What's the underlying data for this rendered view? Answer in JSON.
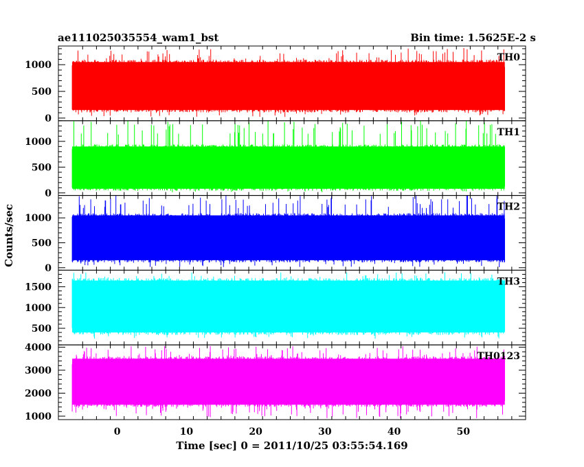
{
  "header": {
    "left_title": "ae111025035554_wam1_bst",
    "right_title": "Bin time: 1.5625E-2 s"
  },
  "chart_data": {
    "type": "line",
    "title": "ae111025035554_wam1_bst",
    "subtitle": "Bin time: 1.5625E-2 s",
    "xlabel": "Time [sec] 0 = 2011/10/25 03:55:54.169",
    "ylabel": "Counts/sec",
    "xlim": [
      -8.5,
      59
    ],
    "x_ticks": [
      0,
      10,
      20,
      30,
      40,
      50
    ],
    "x_tick_labels": [
      "0",
      "10",
      "20",
      "30",
      "40",
      "50"
    ],
    "x_data_range": [
      -6.5,
      56
    ],
    "grid": false,
    "panels": [
      {
        "name": "TH0",
        "color": "#ff0000",
        "ylim": [
          -50,
          1350
        ],
        "y_ticks": [
          0,
          500,
          1000
        ],
        "y_tick_labels": [
          "0",
          "500",
          "1000"
        ],
        "typical_range": [
          150,
          1050
        ],
        "extreme_range": [
          20,
          1320
        ]
      },
      {
        "name": "TH1",
        "color": "#00ff00",
        "ylim": [
          -50,
          1400
        ],
        "y_ticks": [
          0,
          500,
          1000
        ],
        "y_tick_labels": [
          "0",
          "500",
          "1000"
        ],
        "typical_range": [
          80,
          900
        ],
        "extreme_range": [
          10,
          1400
        ]
      },
      {
        "name": "TH2",
        "color": "#0000ff",
        "ylim": [
          -50,
          1450
        ],
        "y_ticks": [
          0,
          500,
          1000
        ],
        "y_tick_labels": [
          "0",
          "500",
          "1000"
        ],
        "typical_range": [
          150,
          1050
        ],
        "extreme_range": [
          10,
          1450
        ]
      },
      {
        "name": "TH3",
        "color": "#00ffff",
        "ylim": [
          100,
          1900
        ],
        "y_ticks": [
          500,
          1000,
          1500
        ],
        "y_tick_labels": [
          "500",
          "1000",
          "1500"
        ],
        "typical_range": [
          400,
          1650
        ],
        "extreme_range": [
          250,
          1850
        ]
      },
      {
        "name": "TH0123",
        "color": "#ff00ff",
        "ylim": [
          850,
          4100
        ],
        "y_ticks": [
          1000,
          2000,
          3000,
          4000
        ],
        "y_tick_labels": [
          "1000",
          "2000",
          "3000",
          "4000"
        ],
        "typical_range": [
          1500,
          3500
        ],
        "extreme_range": [
          900,
          4050
        ]
      }
    ]
  }
}
